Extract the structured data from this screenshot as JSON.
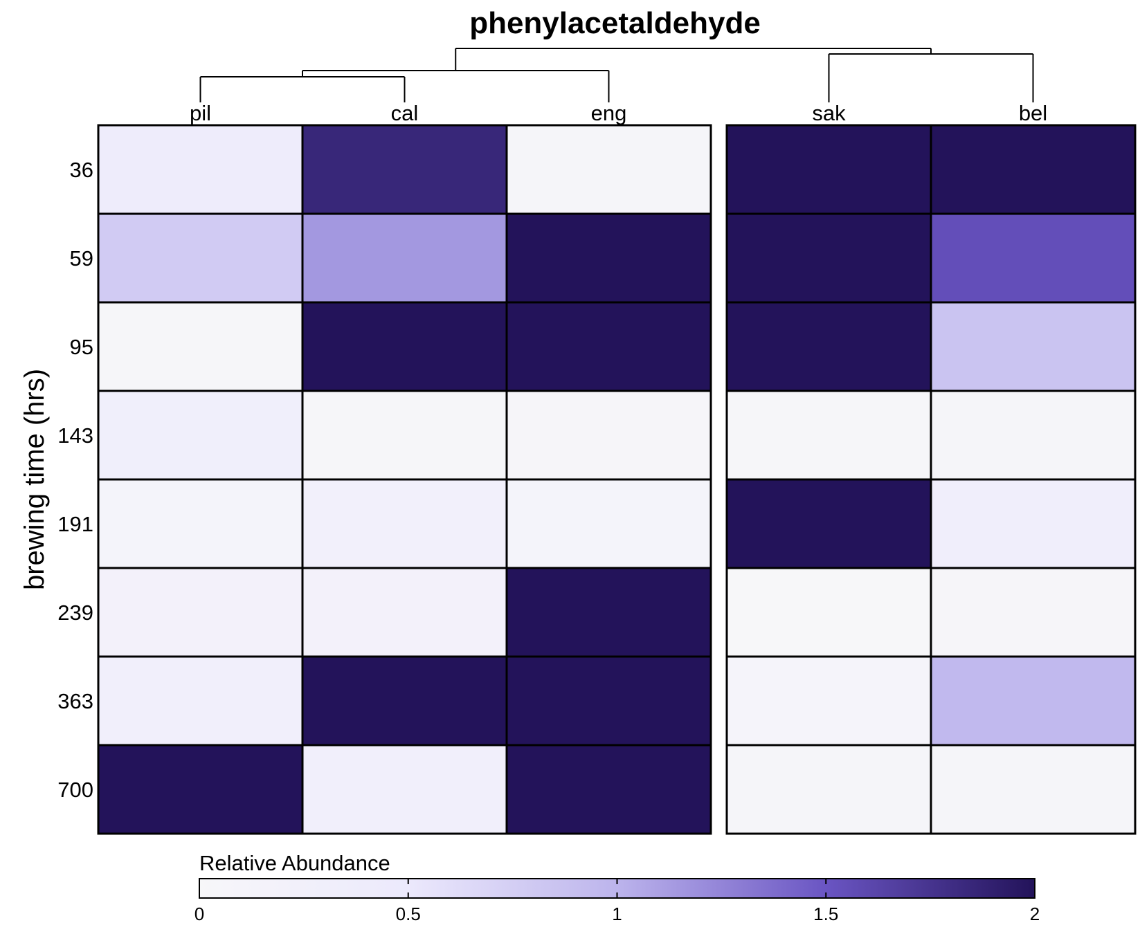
{
  "chart_data": {
    "type": "heatmap",
    "title": "phenylacetaldehyde",
    "ylabel": "brewing time (hrs)",
    "colorbar_label": "Relative Abundance",
    "colorbar_range": [
      0,
      2
    ],
    "colorbar_ticks": [
      "0",
      "0.5",
      "1",
      "1.5",
      "2"
    ],
    "color_low": "#f7f7f9",
    "color_high": "#23135a",
    "groups": [
      [
        "pil",
        "cal",
        "eng"
      ],
      [
        "sak",
        "bel"
      ]
    ],
    "columns": [
      "pil",
      "cal",
      "eng",
      "sak",
      "bel"
    ],
    "rows": [
      "36",
      "59",
      "95",
      "143",
      "191",
      "239",
      "363",
      "700"
    ],
    "values": [
      [
        0.4,
        1.85,
        0.07,
        2.0,
        2.0
      ],
      [
        0.78,
        1.15,
        2.0,
        2.0,
        1.55
      ],
      [
        0.05,
        2.0,
        2.0,
        2.0,
        0.85
      ],
      [
        0.3,
        0.05,
        0.06,
        0.05,
        0.07
      ],
      [
        0.12,
        0.25,
        0.12,
        2.0,
        0.33
      ],
      [
        0.2,
        0.2,
        2.0,
        0.0,
        0.06
      ],
      [
        0.28,
        2.0,
        2.0,
        0.1,
        0.95
      ],
      [
        2.0,
        0.28,
        2.0,
        0.08,
        0.08
      ]
    ]
  }
}
